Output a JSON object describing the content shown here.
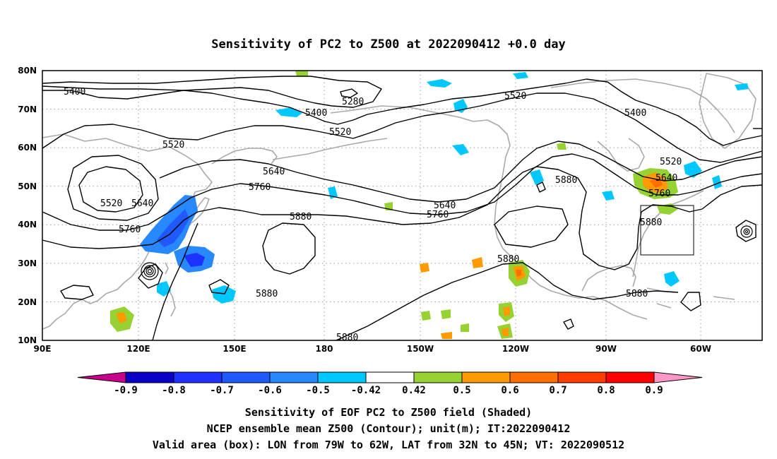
{
  "title": "Sensitivity of PC2 to Z500 at 2022090412 +0.0 day",
  "lat_ticks": [
    "80N",
    "70N",
    "60N",
    "50N",
    "40N",
    "30N",
    "20N",
    "10N"
  ],
  "lon_ticks": [
    "90E",
    "120E",
    "150E",
    "180",
    "150W",
    "120W",
    "90W",
    "60W"
  ],
  "contour_labels": {
    "c5400a": "5400",
    "c5400b": "5400",
    "c5400c": "5400",
    "c5280": "5280",
    "c5520a": "5520",
    "c5520b": "5520",
    "c5520c": "5520",
    "c5520d": "5520",
    "c5520e": "5520",
    "c5640a": "5640",
    "c5640b": "5640",
    "c5640c": "5640",
    "c5640d": "5640",
    "c5760a": "5760",
    "c5760b": "5760",
    "c5760c": "5760",
    "c5760d": "5760",
    "c5880a": "5880",
    "c5880b": "5880",
    "c5880c": "5880",
    "c5880d": "5880",
    "c5880e": "5880",
    "c5880f": "5880",
    "c5880g": "5880"
  },
  "colorbar": {
    "labels": [
      "-0.9",
      "-0.8",
      "-0.7",
      "-0.6",
      "-0.5",
      "-0.42",
      "0.42",
      "0.5",
      "0.6",
      "0.7",
      "0.8",
      "0.9"
    ],
    "colors": [
      "#0a00c8",
      "#1e32ff",
      "#1e5aff",
      "#2888ff",
      "#00c8ff",
      "#ffffff",
      "#96d232",
      "#ff9b00",
      "#ff6e00",
      "#ff3c00",
      "#ff0000"
    ],
    "low_end_color": "#c8008c",
    "high_end_color": "#ff96c8"
  },
  "box": {
    "lon_from": "79W",
    "lon_to": "62W",
    "lat_from": "32N",
    "lat_to": "45N"
  },
  "footer": {
    "line1": "Sensitivity of EOF PC2 to Z500 field (Shaded)",
    "line2": "NCEP ensemble mean Z500 (Contour); unit(m); IT:2022090412",
    "line3": "Valid area (box): LON from 79W to 62W, LAT from 32N to 45N; VT: 2022090512"
  }
}
